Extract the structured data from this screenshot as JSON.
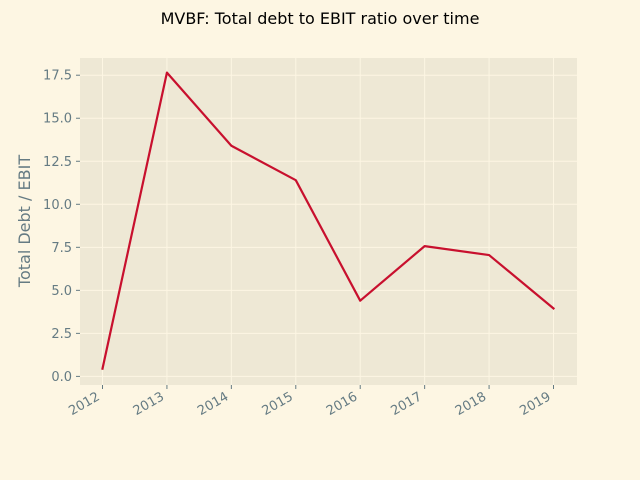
{
  "chart_data": {
    "type": "line",
    "title": "MVBF: Total debt to EBIT ratio over time",
    "xlabel": "",
    "ylabel": "Total Debt / EBIT",
    "categories": [
      "2012",
      "2013",
      "2014",
      "2015",
      "2016",
      "2017",
      "2018",
      "2019"
    ],
    "series": [
      {
        "values": [
          0.45,
          17.65,
          13.4,
          11.4,
          4.4,
          7.57,
          7.05,
          3.95
        ]
      }
    ],
    "ylim": [
      -0.5,
      18.5
    ],
    "yticks": [
      "0.0",
      "2.5",
      "5.0",
      "7.5",
      "10.0",
      "12.5",
      "15.0",
      "17.5"
    ],
    "grid": true,
    "colors": {
      "background": "#fdf6e3",
      "plot_area": "#eee8d5",
      "grid": "#fdf6e3",
      "line": "#c8102e",
      "text": "#657b83"
    }
  }
}
